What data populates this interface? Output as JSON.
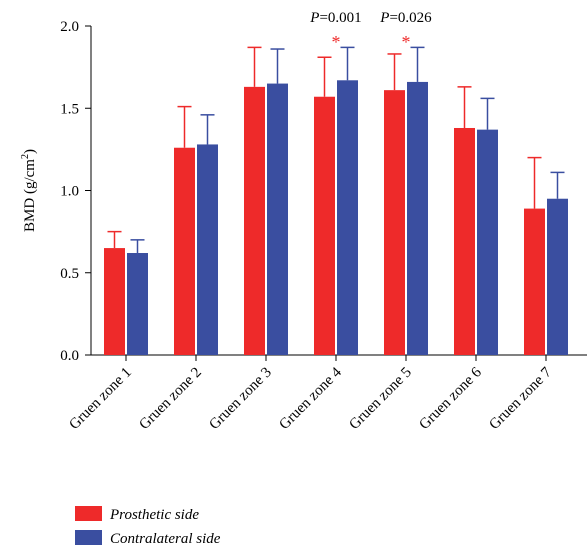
{
  "chart_data": {
    "type": "bar",
    "title": "",
    "xlabel": "",
    "ylabel": "BMD (g/cm²)",
    "ylabel_parts": {
      "main": "BMD (g/cm",
      "sup": "2",
      "end": ")"
    },
    "ylim": [
      0,
      2.0
    ],
    "yticks": [
      "0.0",
      "0.5",
      "1.0",
      "1.5",
      "2.0"
    ],
    "ytick_values": [
      0.0,
      0.5,
      1.0,
      1.5,
      2.0
    ],
    "grid": false,
    "legend_position": "bottom-left",
    "categories": [
      "Gruen zone 1",
      "Gruen zone 2",
      "Gruen zone 3",
      "Gruen zone 4",
      "Gruen zone 5",
      "Gruen zone 6",
      "Gruen zone 7"
    ],
    "series": [
      {
        "name": "Prosthetic side",
        "color": "#ee2a2a",
        "values": [
          0.65,
          1.26,
          1.63,
          1.57,
          1.61,
          1.38,
          0.89
        ],
        "errors": [
          0.1,
          0.25,
          0.24,
          0.24,
          0.22,
          0.25,
          0.31
        ]
      },
      {
        "name": "Contralateral side",
        "color": "#3a4ea0",
        "values": [
          0.62,
          1.28,
          1.65,
          1.67,
          1.66,
          1.37,
          0.95
        ],
        "errors": [
          0.08,
          0.18,
          0.21,
          0.2,
          0.21,
          0.19,
          0.16
        ]
      }
    ],
    "annotations": [
      {
        "category_index": 3,
        "p_label": "P",
        "p_value": "=0.001",
        "marker": "*",
        "marker_color": "#ee2a2a"
      },
      {
        "category_index": 4,
        "p_label": "P",
        "p_value": "=0.026",
        "marker": "*",
        "marker_color": "#ee2a2a"
      }
    ]
  }
}
